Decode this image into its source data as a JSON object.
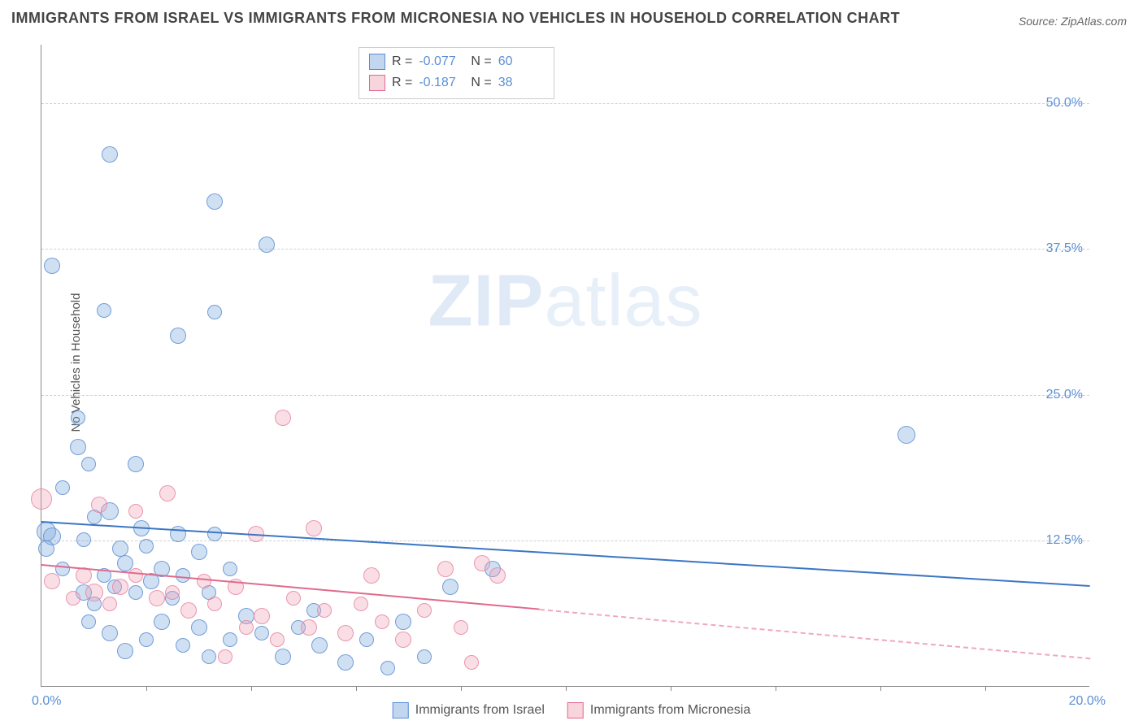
{
  "title": "IMMIGRANTS FROM ISRAEL VS IMMIGRANTS FROM MICRONESIA NO VEHICLES IN HOUSEHOLD CORRELATION CHART",
  "source": "Source: ZipAtlas.com",
  "ylabel": "No Vehicles in Household",
  "watermark_bold": "ZIP",
  "watermark_rest": "atlas",
  "chart": {
    "type": "scatter",
    "xlim": [
      0,
      20
    ],
    "ylim": [
      0,
      55
    ],
    "xticks_minor": [
      2,
      4,
      6,
      8,
      10,
      12,
      14,
      16,
      18
    ],
    "xtick_labels": {
      "left": "0.0%",
      "right": "20.0%"
    },
    "ytick_positions": [
      12.5,
      25.0,
      37.5,
      50.0
    ],
    "ytick_labels": [
      "12.5%",
      "25.0%",
      "37.5%",
      "50.0%"
    ],
    "grid_color": "#d0d0d0",
    "background_color": "#ffffff",
    "axis_color": "#888888",
    "point_radius_base": 9,
    "series": [
      {
        "name": "Immigrants from Israel",
        "key": "blue",
        "color_fill": "rgba(120,165,220,0.35)",
        "color_stroke": "#5b8fd6",
        "R": "-0.077",
        "N": "60",
        "trend": {
          "y_at_x0": 14.2,
          "y_at_x20": 8.7,
          "color": "#3b76c4"
        },
        "points": [
          {
            "x": 0.2,
            "y": 36.0,
            "r": 10
          },
          {
            "x": 1.3,
            "y": 45.5,
            "r": 10
          },
          {
            "x": 3.3,
            "y": 41.5,
            "r": 10
          },
          {
            "x": 4.3,
            "y": 37.8,
            "r": 10
          },
          {
            "x": 1.2,
            "y": 32.2,
            "r": 9
          },
          {
            "x": 2.6,
            "y": 30.0,
            "r": 10
          },
          {
            "x": 3.3,
            "y": 32.0,
            "r": 9
          },
          {
            "x": 0.7,
            "y": 23.0,
            "r": 9
          },
          {
            "x": 0.7,
            "y": 20.5,
            "r": 10
          },
          {
            "x": 0.9,
            "y": 19.0,
            "r": 9
          },
          {
            "x": 1.8,
            "y": 19.0,
            "r": 10
          },
          {
            "x": 0.4,
            "y": 17.0,
            "r": 9
          },
          {
            "x": 0.1,
            "y": 13.2,
            "r": 12
          },
          {
            "x": 0.2,
            "y": 12.8,
            "r": 11
          },
          {
            "x": 0.1,
            "y": 11.8,
            "r": 10
          },
          {
            "x": 0.8,
            "y": 12.5,
            "r": 9
          },
          {
            "x": 1.0,
            "y": 14.5,
            "r": 9
          },
          {
            "x": 1.3,
            "y": 15.0,
            "r": 11
          },
          {
            "x": 1.5,
            "y": 11.8,
            "r": 10
          },
          {
            "x": 1.9,
            "y": 13.5,
            "r": 10
          },
          {
            "x": 2.0,
            "y": 12.0,
            "r": 9
          },
          {
            "x": 2.6,
            "y": 13.0,
            "r": 10
          },
          {
            "x": 3.3,
            "y": 13.0,
            "r": 9
          },
          {
            "x": 0.8,
            "y": 8.0,
            "r": 10
          },
          {
            "x": 1.0,
            "y": 7.0,
            "r": 9
          },
          {
            "x": 1.2,
            "y": 9.5,
            "r": 9
          },
          {
            "x": 1.4,
            "y": 8.5,
            "r": 9
          },
          {
            "x": 1.6,
            "y": 10.5,
            "r": 10
          },
          {
            "x": 1.8,
            "y": 8.0,
            "r": 9
          },
          {
            "x": 2.1,
            "y": 9.0,
            "r": 10
          },
          {
            "x": 2.3,
            "y": 10.0,
            "r": 10
          },
          {
            "x": 2.5,
            "y": 7.5,
            "r": 9
          },
          {
            "x": 2.7,
            "y": 9.5,
            "r": 9
          },
          {
            "x": 3.0,
            "y": 11.5,
            "r": 10
          },
          {
            "x": 3.2,
            "y": 8.0,
            "r": 9
          },
          {
            "x": 3.6,
            "y": 10.0,
            "r": 9
          },
          {
            "x": 0.9,
            "y": 5.5,
            "r": 9
          },
          {
            "x": 1.3,
            "y": 4.5,
            "r": 10
          },
          {
            "x": 1.6,
            "y": 3.0,
            "r": 10
          },
          {
            "x": 2.0,
            "y": 4.0,
            "r": 9
          },
          {
            "x": 2.3,
            "y": 5.5,
            "r": 10
          },
          {
            "x": 2.7,
            "y": 3.5,
            "r": 9
          },
          {
            "x": 3.0,
            "y": 5.0,
            "r": 10
          },
          {
            "x": 3.2,
            "y": 2.5,
            "r": 9
          },
          {
            "x": 3.6,
            "y": 4.0,
            "r": 9
          },
          {
            "x": 3.9,
            "y": 6.0,
            "r": 10
          },
          {
            "x": 4.2,
            "y": 4.5,
            "r": 9
          },
          {
            "x": 4.6,
            "y": 2.5,
            "r": 10
          },
          {
            "x": 4.9,
            "y": 5.0,
            "r": 9
          },
          {
            "x": 5.2,
            "y": 6.5,
            "r": 9
          },
          {
            "x": 5.3,
            "y": 3.5,
            "r": 10
          },
          {
            "x": 5.8,
            "y": 2.0,
            "r": 10
          },
          {
            "x": 6.2,
            "y": 4.0,
            "r": 9
          },
          {
            "x": 6.6,
            "y": 1.5,
            "r": 9
          },
          {
            "x": 6.9,
            "y": 5.5,
            "r": 10
          },
          {
            "x": 7.3,
            "y": 2.5,
            "r": 9
          },
          {
            "x": 7.8,
            "y": 8.5,
            "r": 10
          },
          {
            "x": 8.6,
            "y": 10.0,
            "r": 10
          },
          {
            "x": 16.5,
            "y": 21.5,
            "r": 11
          },
          {
            "x": 0.4,
            "y": 10.0,
            "r": 9
          }
        ]
      },
      {
        "name": "Immigrants from Micronesia",
        "key": "pink",
        "color_fill": "rgba(240,160,180,0.35)",
        "color_stroke": "#e06a8c",
        "R": "-0.187",
        "N": "38",
        "trend": {
          "y_at_x0": 10.5,
          "y_at_x20": 2.5,
          "solid_until_x": 9.5,
          "color_solid": "#e06a8c",
          "color_dash": "#f0a8bc"
        },
        "points": [
          {
            "x": 0.0,
            "y": 16.0,
            "r": 13
          },
          {
            "x": 0.2,
            "y": 9.0,
            "r": 10
          },
          {
            "x": 0.6,
            "y": 7.5,
            "r": 9
          },
          {
            "x": 0.8,
            "y": 9.5,
            "r": 10
          },
          {
            "x": 1.0,
            "y": 8.0,
            "r": 11
          },
          {
            "x": 1.1,
            "y": 15.5,
            "r": 10
          },
          {
            "x": 1.3,
            "y": 7.0,
            "r": 9
          },
          {
            "x": 1.5,
            "y": 8.5,
            "r": 10
          },
          {
            "x": 1.8,
            "y": 9.5,
            "r": 9
          },
          {
            "x": 1.8,
            "y": 15.0,
            "r": 9
          },
          {
            "x": 2.2,
            "y": 7.5,
            "r": 10
          },
          {
            "x": 2.4,
            "y": 16.5,
            "r": 10
          },
          {
            "x": 2.5,
            "y": 8.0,
            "r": 9
          },
          {
            "x": 2.8,
            "y": 6.5,
            "r": 10
          },
          {
            "x": 3.1,
            "y": 9.0,
            "r": 9
          },
          {
            "x": 3.3,
            "y": 7.0,
            "r": 9
          },
          {
            "x": 3.7,
            "y": 8.5,
            "r": 10
          },
          {
            "x": 3.9,
            "y": 5.0,
            "r": 9
          },
          {
            "x": 4.1,
            "y": 13.0,
            "r": 10
          },
          {
            "x": 4.2,
            "y": 6.0,
            "r": 10
          },
          {
            "x": 4.5,
            "y": 4.0,
            "r": 9
          },
          {
            "x": 4.6,
            "y": 23.0,
            "r": 10
          },
          {
            "x": 4.8,
            "y": 7.5,
            "r": 9
          },
          {
            "x": 5.1,
            "y": 5.0,
            "r": 10
          },
          {
            "x": 5.2,
            "y": 13.5,
            "r": 10
          },
          {
            "x": 5.4,
            "y": 6.5,
            "r": 9
          },
          {
            "x": 5.8,
            "y": 4.5,
            "r": 10
          },
          {
            "x": 6.1,
            "y": 7.0,
            "r": 9
          },
          {
            "x": 6.3,
            "y": 9.5,
            "r": 10
          },
          {
            "x": 6.5,
            "y": 5.5,
            "r": 9
          },
          {
            "x": 6.9,
            "y": 4.0,
            "r": 10
          },
          {
            "x": 7.3,
            "y": 6.5,
            "r": 9
          },
          {
            "x": 7.7,
            "y": 10.0,
            "r": 10
          },
          {
            "x": 8.0,
            "y": 5.0,
            "r": 9
          },
          {
            "x": 8.2,
            "y": 2.0,
            "r": 9
          },
          {
            "x": 8.4,
            "y": 10.5,
            "r": 10
          },
          {
            "x": 8.7,
            "y": 9.5,
            "r": 10
          },
          {
            "x": 3.5,
            "y": 2.5,
            "r": 9
          }
        ]
      }
    ]
  },
  "legend_bottom": [
    {
      "swatch": "blue",
      "label": "Immigrants from Israel"
    },
    {
      "swatch": "pink",
      "label": "Immigrants from Micronesia"
    }
  ],
  "legend_box_labels": {
    "R": "R =",
    "N": "N ="
  }
}
